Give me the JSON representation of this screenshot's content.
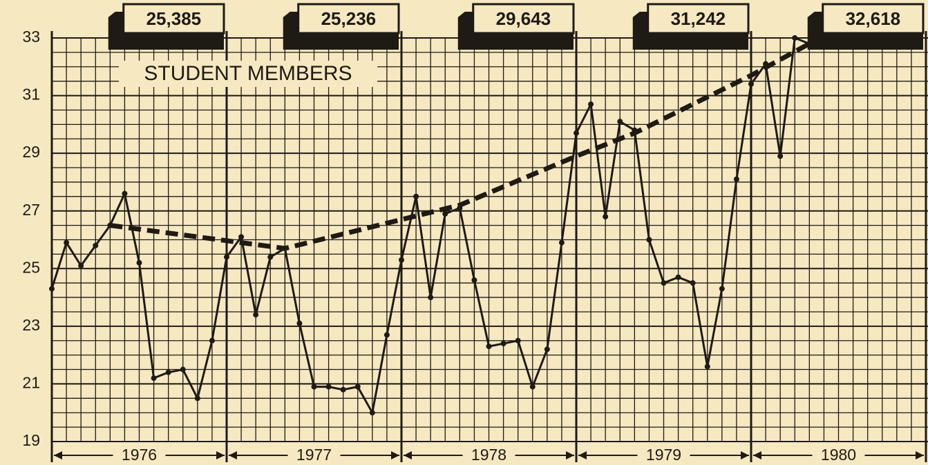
{
  "chart_data": {
    "type": "line",
    "title": "STUDENT MEMBERS",
    "x": [
      0,
      1,
      2,
      3,
      4,
      5,
      6,
      7,
      8,
      9,
      10,
      11,
      12,
      13,
      14,
      15,
      16,
      17,
      18,
      19,
      20,
      21,
      22,
      23,
      24,
      25,
      26,
      27,
      28,
      29,
      30,
      31,
      32,
      33,
      34,
      35,
      36,
      37,
      38,
      39,
      40,
      41,
      42,
      43,
      44,
      45,
      46,
      47,
      48,
      49,
      50,
      51,
      52
    ],
    "series": [
      {
        "color": "#1e1a14",
        "style": "solid",
        "x": [
          0,
          1,
          2,
          3,
          4,
          5,
          6,
          7,
          8,
          9,
          10,
          11,
          12,
          13,
          14,
          15,
          16,
          17,
          18,
          19,
          20,
          21,
          22,
          23,
          24,
          25,
          26,
          27,
          28,
          29,
          30,
          31,
          32,
          33,
          34,
          35,
          36,
          37,
          38,
          39,
          40,
          41,
          42,
          43,
          44,
          45,
          46,
          47,
          48,
          49,
          50,
          51,
          52
        ],
        "values": [
          24.3,
          25.9,
          25.1,
          25.8,
          26.5,
          27.6,
          25.2,
          21.2,
          21.4,
          21.5,
          20.5,
          22.5,
          25.4,
          26.1,
          23.4,
          25.4,
          25.7,
          23.1,
          20.9,
          20.9,
          20.8,
          20.9,
          20.0,
          22.7,
          25.3,
          27.5,
          24.0,
          26.9,
          27.1,
          24.6,
          22.3,
          22.4,
          22.5,
          20.9,
          22.2,
          25.9,
          29.7,
          30.7,
          26.8,
          30.1,
          29.8,
          26.0,
          24.5,
          24.7,
          24.5,
          21.6,
          24.3,
          28.1,
          31.4,
          32.1,
          28.9,
          33.0,
          32.8
        ]
      },
      {
        "color": "#1e1a14",
        "style": "dashed",
        "x": [
          4,
          16,
          24,
          28,
          36,
          40,
          48,
          52
        ],
        "values": [
          26.5,
          25.7,
          26.7,
          27.2,
          28.9,
          29.7,
          31.7,
          32.8
        ]
      }
    ],
    "xlim": [
      0,
      60
    ],
    "ylim": [
      19,
      33
    ],
    "yticks": [
      19,
      21,
      23,
      25,
      27,
      29,
      31,
      33
    ],
    "year_labels": [
      "1976",
      "1977",
      "1978",
      "1979",
      "1980"
    ],
    "annual_totals": [
      {
        "value": 25385,
        "label": "25,385"
      },
      {
        "value": 25236,
        "label": "25,236"
      },
      {
        "value": 29643,
        "label": "29,643"
      },
      {
        "value": 31242,
        "label": "31,242"
      },
      {
        "value": 32618,
        "label": "32,618"
      }
    ],
    "grid": true
  }
}
